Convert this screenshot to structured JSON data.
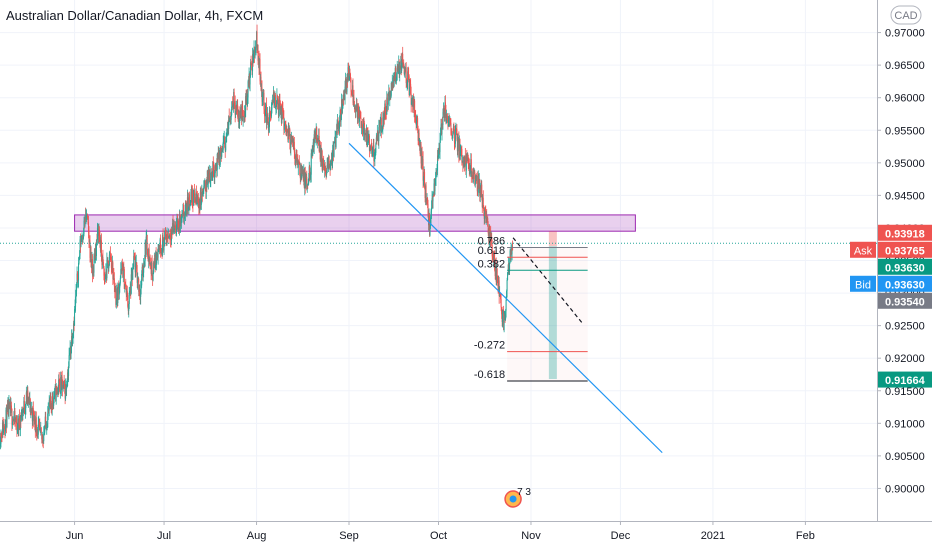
{
  "chart_data": {
    "type": "line",
    "title": "Australian Dollar/Canadian Dollar, 4h, FXCM",
    "currency": "CAD",
    "x_axis": {
      "labels": [
        "Jun",
        "Jul",
        "Aug",
        "Sep",
        "Oct",
        "Nov",
        "Dec",
        "2021",
        "Feb"
      ],
      "dates": [
        "2020-06-01",
        "2020-07-01",
        "2020-08-01",
        "2020-09-01",
        "2020-10-01",
        "2020-11-01",
        "2020-12-01",
        "2021-01-01",
        "2021-02-01"
      ],
      "range": [
        "2020-05-07",
        "2021-02-25"
      ]
    },
    "y_axis": {
      "ticks": [
        "0.97000",
        "0.96500",
        "0.96000",
        "0.95500",
        "0.95000",
        "0.94500",
        "0.94000",
        "0.93500",
        "0.93000",
        "0.92500",
        "0.92000",
        "0.91500",
        "0.91000",
        "0.90500",
        "0.90000"
      ],
      "range": [
        0.895,
        0.975
      ],
      "side": "right"
    },
    "grid": true,
    "series": [
      {
        "style": "candles",
        "up_color": "#26a69a",
        "down_color": "#ef5350",
        "points": [
          [
            "2020-05-07",
            0.908
          ],
          [
            "2020-05-10",
            0.912
          ],
          [
            "2020-05-13",
            0.9095
          ],
          [
            "2020-05-16",
            0.914
          ],
          [
            "2020-05-19",
            0.91
          ],
          [
            "2020-05-21",
            0.9075
          ],
          [
            "2020-05-24",
            0.913
          ],
          [
            "2020-05-27",
            0.916
          ],
          [
            "2020-05-29",
            0.915
          ],
          [
            "2020-06-01",
            0.927
          ],
          [
            "2020-06-03",
            0.938
          ],
          [
            "2020-06-05",
            0.942
          ],
          [
            "2020-06-07",
            0.933
          ],
          [
            "2020-06-09",
            0.94
          ],
          [
            "2020-06-11",
            0.932
          ],
          [
            "2020-06-13",
            0.936
          ],
          [
            "2020-06-15",
            0.929
          ],
          [
            "2020-06-17",
            0.934
          ],
          [
            "2020-06-19",
            0.928
          ],
          [
            "2020-06-21",
            0.935
          ],
          [
            "2020-06-23",
            0.93
          ],
          [
            "2020-06-25",
            0.938
          ],
          [
            "2020-06-27",
            0.933
          ],
          [
            "2020-06-29",
            0.937
          ],
          [
            "2020-07-01",
            0.938
          ],
          [
            "2020-07-04",
            0.94
          ],
          [
            "2020-07-07",
            0.941
          ],
          [
            "2020-07-10",
            0.945
          ],
          [
            "2020-07-13",
            0.944
          ],
          [
            "2020-07-16",
            0.948
          ],
          [
            "2020-07-19",
            0.95
          ],
          [
            "2020-07-22",
            0.954
          ],
          [
            "2020-07-24",
            0.96
          ],
          [
            "2020-07-26",
            0.957
          ],
          [
            "2020-07-28",
            0.958
          ],
          [
            "2020-07-30",
            0.964
          ],
          [
            "2020-08-01",
            0.969
          ],
          [
            "2020-08-03",
            0.96
          ],
          [
            "2020-08-05",
            0.956
          ],
          [
            "2020-08-07",
            0.96
          ],
          [
            "2020-08-09",
            0.958
          ],
          [
            "2020-08-12",
            0.954
          ],
          [
            "2020-08-15",
            0.95
          ],
          [
            "2020-08-18",
            0.946
          ],
          [
            "2020-08-21",
            0.955
          ],
          [
            "2020-08-24",
            0.948
          ],
          [
            "2020-08-27",
            0.952
          ],
          [
            "2020-08-30",
            0.96
          ],
          [
            "2020-09-01",
            0.964
          ],
          [
            "2020-09-03",
            0.959
          ],
          [
            "2020-09-06",
            0.955
          ],
          [
            "2020-09-09",
            0.951
          ],
          [
            "2020-09-12",
            0.956
          ],
          [
            "2020-09-15",
            0.961
          ],
          [
            "2020-09-17",
            0.964
          ],
          [
            "2020-09-19",
            0.966
          ],
          [
            "2020-09-21",
            0.962
          ],
          [
            "2020-09-23",
            0.958
          ],
          [
            "2020-09-25",
            0.952
          ],
          [
            "2020-09-27",
            0.944
          ],
          [
            "2020-09-28",
            0.94
          ],
          [
            "2020-09-30",
            0.948
          ],
          [
            "2020-10-01",
            0.952
          ],
          [
            "2020-10-03",
            0.958
          ],
          [
            "2020-10-06",
            0.955
          ],
          [
            "2020-10-09",
            0.951
          ],
          [
            "2020-10-12",
            0.949
          ],
          [
            "2020-10-15",
            0.946
          ],
          [
            "2020-10-17",
            0.941
          ],
          [
            "2020-10-19",
            0.937
          ],
          [
            "2020-10-21",
            0.931
          ],
          [
            "2020-10-23",
            0.925
          ],
          [
            "2020-10-24",
            0.932
          ],
          [
            "2020-10-26",
            0.9385
          ]
        ]
      }
    ],
    "drawings": {
      "resistance_zone": {
        "from": "2020-06-01",
        "to": "2020-12-06",
        "low": 0.9395,
        "high": 0.942,
        "color": "#9c27b0"
      },
      "trendline": {
        "from": [
          "2020-09-01",
          0.953
        ],
        "to": [
          "2020-12-15",
          0.9055
        ],
        "color": "#2196f3"
      },
      "projection": {
        "from": [
          "2020-10-26",
          0.9385
        ],
        "to": [
          "2020-11-18",
          0.9255
        ],
        "style": "dashed"
      },
      "fib_levels": [
        {
          "label": "0.786",
          "value": 0.937
        },
        {
          "label": "0.618",
          "value": 0.9355
        },
        {
          "label": "0.382",
          "value": 0.9335
        },
        {
          "label": "-0.272",
          "value": 0.921
        },
        {
          "label": "-0.618",
          "value": 0.9165
        }
      ],
      "fib_range": {
        "from": "2020-10-24",
        "to": "2020-11-20"
      }
    },
    "price_labels": [
      {
        "text": "0.93918",
        "value": 0.93918,
        "color": "#ef5350"
      },
      {
        "prefix": "Ask",
        "text": "0.93765",
        "value": 0.93765,
        "color": "#ef5350"
      },
      {
        "text": "0.93630",
        "value": 0.9363,
        "color": "#089981"
      },
      {
        "prefix": "Bid",
        "text": "0.93630",
        "value": 0.9363,
        "color": "#2196f3"
      },
      {
        "text": "0.93540",
        "value": 0.9354,
        "color": "#787b86"
      },
      {
        "text": "0.91664",
        "value": 0.91664,
        "color": "#089981"
      }
    ],
    "event_marker": {
      "date": "2020-10-26",
      "text": "7 3"
    }
  }
}
